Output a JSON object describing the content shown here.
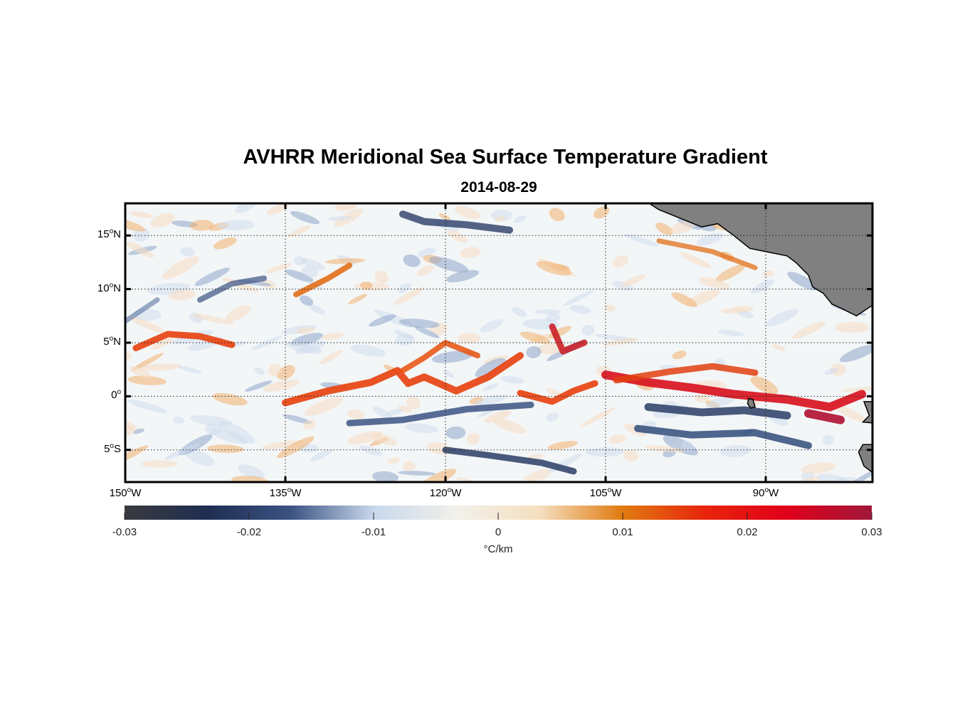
{
  "title": "AVHRR Meridional Sea Surface Temperature Gradient",
  "subtitle": "2014-08-29",
  "map": {
    "lon_range": [
      -150,
      -80
    ],
    "lat_range": [
      -8,
      18
    ],
    "land_color": "#808080",
    "lat_ticks": [
      {
        "value": 15,
        "num": "15",
        "hemi": "N"
      },
      {
        "value": 10,
        "num": "10",
        "hemi": "N"
      },
      {
        "value": 5,
        "num": "5",
        "hemi": "N"
      },
      {
        "value": 0,
        "num": "0",
        "hemi": ""
      },
      {
        "value": -5,
        "num": "5",
        "hemi": "S"
      }
    ],
    "lon_ticks": [
      {
        "value": -150,
        "num": "150",
        "hemi": "W"
      },
      {
        "value": -135,
        "num": "135",
        "hemi": "W"
      },
      {
        "value": -120,
        "num": "120",
        "hemi": "W"
      },
      {
        "value": -105,
        "num": "105",
        "hemi": "W"
      },
      {
        "value": -90,
        "num": "90",
        "hemi": "W"
      }
    ]
  },
  "colorbar": {
    "ticks": [
      "-0.03",
      "-0.02",
      "-0.01",
      "0",
      "0.01",
      "0.02",
      "0.03"
    ],
    "range": [
      -0.03,
      0.03
    ],
    "unit": "°C/km",
    "colors": [
      "#3a3a3f",
      "#1f2e52",
      "#3b5382",
      "#c8d8ec",
      "#f2f0ea",
      "#f5dfbf",
      "#e07b10",
      "#e8240c",
      "#e0001a",
      "#a0183a"
    ]
  }
}
